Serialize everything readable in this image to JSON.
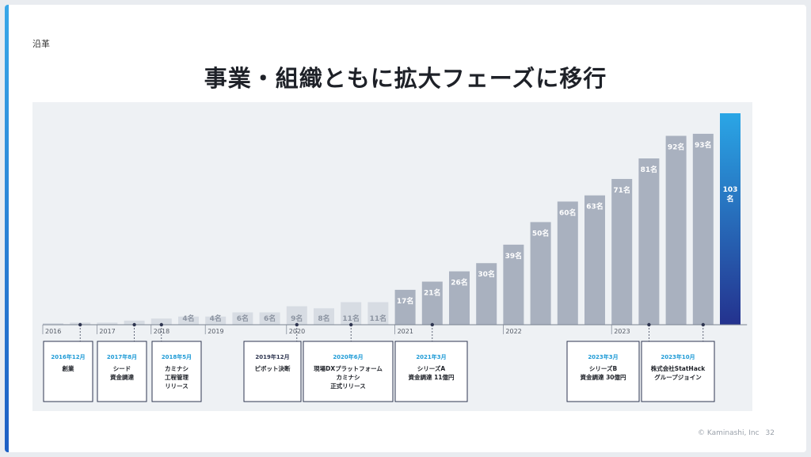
{
  "section": "沿革",
  "title": "事業・組織ともに拡大フェーズに移行",
  "footer": {
    "copyright": "© Kaminashi, Inc",
    "page": "32"
  },
  "chart_data": {
    "type": "bar",
    "title": "",
    "xlabel": "",
    "ylabel": "",
    "unit": "名",
    "ylim": [
      0,
      103
    ],
    "values": [
      0.5,
      1,
      1,
      2,
      3,
      4,
      4,
      6,
      6,
      9,
      8,
      11,
      11,
      17,
      21,
      26,
      30,
      39,
      50,
      60,
      63,
      71,
      81,
      92,
      93,
      103
    ],
    "labels": [
      "",
      "",
      "",
      "",
      "",
      "4名",
      "4名",
      "6名",
      "6名",
      "9名",
      "8名",
      "11名",
      "11名",
      "17名",
      "21名",
      "26名",
      "30名",
      "39名",
      "50名",
      "60名",
      "63名",
      "71名",
      "81名",
      "92名",
      "93名",
      "103名"
    ],
    "years": [
      {
        "label": "2016",
        "bar": 0
      },
      {
        "label": "2017",
        "bar": 2
      },
      {
        "label": "2018",
        "bar": 4
      },
      {
        "label": "2019",
        "bar": 6
      },
      {
        "label": "2020",
        "bar": 9
      },
      {
        "label": "2021",
        "bar": 13
      },
      {
        "label": "2022",
        "bar": 17
      },
      {
        "label": "2023",
        "bar": 21
      }
    ],
    "events": [
      {
        "date": "2016年12月",
        "lines": [
          "創業"
        ],
        "bar": 1,
        "highlight": true
      },
      {
        "date": "2017年8月",
        "lines": [
          "シード",
          "資金調達"
        ],
        "bar": 3,
        "highlight": true
      },
      {
        "date": "2018年5月",
        "lines": [
          "カミナシ",
          "工程管理",
          "リリース"
        ],
        "bar": 4,
        "highlight": true
      },
      {
        "date": "2019年12月",
        "lines": [
          "ピボット決断"
        ],
        "bar": 9,
        "highlight": false
      },
      {
        "date": "2020年6月",
        "lines": [
          "現場DXプラットフォーム",
          "カミナシ",
          "正式リリース"
        ],
        "bar": 11,
        "highlight": true
      },
      {
        "date": "2021年3月",
        "lines": [
          "シリーズA",
          "資金調達 11億円"
        ],
        "bar": 14,
        "highlight": true
      },
      {
        "date": "2023年3月",
        "lines": [
          "シリーズB",
          "資金調達 30億円"
        ],
        "bar": 22,
        "highlight": true
      },
      {
        "date": "2023年10月",
        "lines": [
          "株式会社StatHack",
          "グループジョイン"
        ],
        "bar": 24,
        "highlight": true
      }
    ]
  }
}
